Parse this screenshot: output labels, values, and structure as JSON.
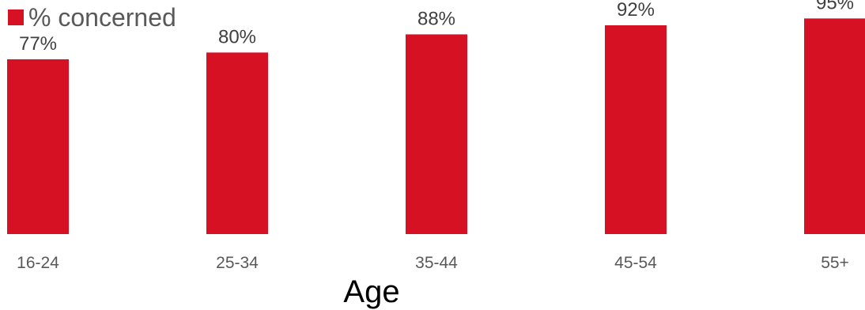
{
  "colors": {
    "bar": "#d71124"
  },
  "legend": {
    "label": "% concerned"
  },
  "chart_data": {
    "type": "bar",
    "categories": [
      "16-24",
      "25-34",
      "35-44",
      "45-54",
      "55+"
    ],
    "series": [
      {
        "name": "% concerned",
        "values": [
          77,
          80,
          88,
          92,
          95
        ]
      }
    ],
    "value_labels": [
      "77%",
      "80%",
      "88%",
      "92%",
      "95%"
    ],
    "xlabel": "Age",
    "ylabel": "",
    "ylim": [
      0,
      100
    ],
    "grid": false,
    "legend_position": "top-left"
  }
}
